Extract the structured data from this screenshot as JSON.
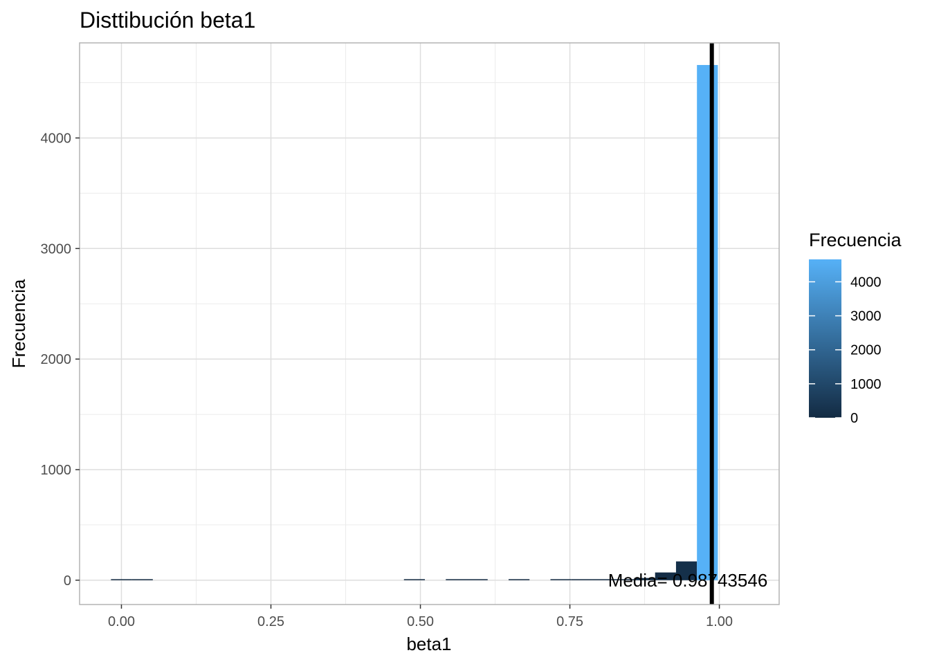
{
  "chart_data": {
    "type": "bar",
    "title": "Disttibución beta1",
    "xlabel": "beta1",
    "ylabel": "Frecuencia",
    "xlim": [
      -0.07,
      1.1
    ],
    "ylim": [
      -220,
      4860
    ],
    "x_ticks": [
      0.0,
      0.25,
      0.5,
      0.75,
      1.0
    ],
    "x_tick_labels": [
      "0.00",
      "0.25",
      "0.50",
      "0.75",
      "1.00"
    ],
    "y_ticks": [
      0,
      1000,
      2000,
      3000,
      4000
    ],
    "y_tick_labels": [
      "0",
      "1000",
      "2000",
      "3000",
      "4000"
    ],
    "grid": true,
    "bin_width": 0.035,
    "bins": [
      {
        "x": 0.0,
        "count": 3
      },
      {
        "x": 0.035,
        "count": 1
      },
      {
        "x": 0.49,
        "count": 1
      },
      {
        "x": 0.56,
        "count": 1
      },
      {
        "x": 0.595,
        "count": 2
      },
      {
        "x": 0.665,
        "count": 1
      },
      {
        "x": 0.735,
        "count": 4
      },
      {
        "x": 0.77,
        "count": 5
      },
      {
        "x": 0.805,
        "count": 3
      },
      {
        "x": 0.84,
        "count": 8
      },
      {
        "x": 0.875,
        "count": 20
      },
      {
        "x": 0.91,
        "count": 70
      },
      {
        "x": 0.945,
        "count": 170
      },
      {
        "x": 0.98,
        "count": 4660
      }
    ],
    "mean_line": {
      "x": 0.9874,
      "label": "Media= 0.98743546"
    },
    "legend": {
      "title": "Frecuencia",
      "placement": "right",
      "type": "colorbar",
      "ticks": [
        0,
        1000,
        2000,
        3000,
        4000
      ],
      "tick_labels": [
        "0",
        "1000",
        "2000",
        "3000",
        "4000"
      ],
      "range": [
        0,
        4660
      ],
      "color_low": "#132B43",
      "color_high": "#56B1F7"
    }
  }
}
